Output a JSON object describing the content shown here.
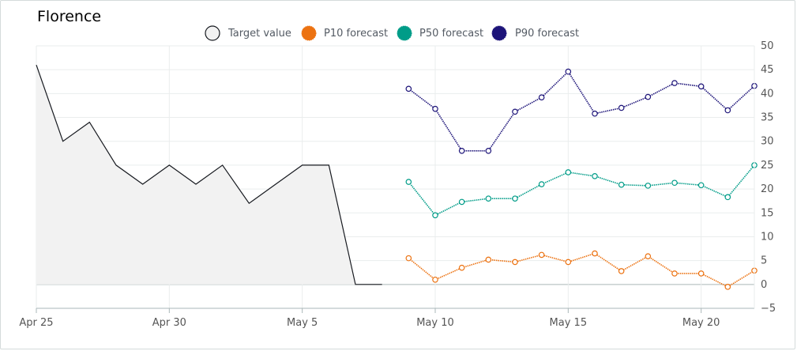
{
  "chart_data": {
    "type": "line",
    "title": "Florence",
    "x_tick_labels": [
      "Apr 25",
      "Apr 30",
      "May 5",
      "May 10",
      "May 15",
      "May 20"
    ],
    "y_tick_labels": [
      "50",
      "45",
      "40",
      "35",
      "30",
      "25",
      "20",
      "15",
      "10",
      "5",
      "0",
      "−5"
    ],
    "x_range": [
      "2024-04-25",
      "2024-05-22"
    ],
    "ylim": [
      -5,
      50
    ],
    "legend_position": "top-center",
    "grid": true,
    "series": [
      {
        "name": "Target value",
        "color": "#16191f",
        "fill": "#f2f2f2",
        "marker": "none",
        "points": [
          {
            "x": "2024-04-25",
            "y": 46
          },
          {
            "x": "2024-04-26",
            "y": 30
          },
          {
            "x": "2024-04-27",
            "y": 34
          },
          {
            "x": "2024-04-28",
            "y": 25
          },
          {
            "x": "2024-04-29",
            "y": 21
          },
          {
            "x": "2024-04-30",
            "y": 25
          },
          {
            "x": "2024-05-01",
            "y": 21
          },
          {
            "x": "2024-05-02",
            "y": 25
          },
          {
            "x": "2024-05-03",
            "y": 17
          },
          {
            "x": "2024-05-04",
            "y": 21
          },
          {
            "x": "2024-05-05",
            "y": 25
          },
          {
            "x": "2024-05-06",
            "y": 25
          },
          {
            "x": "2024-05-07",
            "y": 0
          },
          {
            "x": "2024-05-08",
            "y": 0
          }
        ]
      },
      {
        "name": "P10 forecast",
        "color": "#ec7211",
        "marker": "circle",
        "points": [
          {
            "x": "2024-05-09",
            "y": 5.5
          },
          {
            "x": "2024-05-10",
            "y": 1
          },
          {
            "x": "2024-05-11",
            "y": 3.5
          },
          {
            "x": "2024-05-12",
            "y": 5.2
          },
          {
            "x": "2024-05-13",
            "y": 4.7
          },
          {
            "x": "2024-05-14",
            "y": 6.2
          },
          {
            "x": "2024-05-15",
            "y": 4.7
          },
          {
            "x": "2024-05-16",
            "y": 6.5
          },
          {
            "x": "2024-05-17",
            "y": 2.8
          },
          {
            "x": "2024-05-18",
            "y": 5.9
          },
          {
            "x": "2024-05-19",
            "y": 2.3
          },
          {
            "x": "2024-05-20",
            "y": 2.3
          },
          {
            "x": "2024-05-21",
            "y": -0.5
          },
          {
            "x": "2024-05-22",
            "y": 2.9
          }
        ]
      },
      {
        "name": "P50 forecast",
        "color": "#009c88",
        "marker": "circle",
        "points": [
          {
            "x": "2024-05-09",
            "y": 21.5
          },
          {
            "x": "2024-05-10",
            "y": 14.5
          },
          {
            "x": "2024-05-11",
            "y": 17.3
          },
          {
            "x": "2024-05-12",
            "y": 18
          },
          {
            "x": "2024-05-13",
            "y": 18
          },
          {
            "x": "2024-05-14",
            "y": 21
          },
          {
            "x": "2024-05-15",
            "y": 23.5
          },
          {
            "x": "2024-05-16",
            "y": 22.7
          },
          {
            "x": "2024-05-17",
            "y": 20.9
          },
          {
            "x": "2024-05-18",
            "y": 20.7
          },
          {
            "x": "2024-05-19",
            "y": 21.3
          },
          {
            "x": "2024-05-20",
            "y": 20.8
          },
          {
            "x": "2024-05-21",
            "y": 18.3
          },
          {
            "x": "2024-05-22",
            "y": 25
          }
        ]
      },
      {
        "name": "P90 forecast",
        "color": "#1d1479",
        "marker": "circle",
        "points": [
          {
            "x": "2024-05-09",
            "y": 41
          },
          {
            "x": "2024-05-10",
            "y": 36.8
          },
          {
            "x": "2024-05-11",
            "y": 28
          },
          {
            "x": "2024-05-12",
            "y": 28
          },
          {
            "x": "2024-05-13",
            "y": 36.2
          },
          {
            "x": "2024-05-14",
            "y": 39.2
          },
          {
            "x": "2024-05-15",
            "y": 44.6
          },
          {
            "x": "2024-05-16",
            "y": 35.8
          },
          {
            "x": "2024-05-17",
            "y": 37
          },
          {
            "x": "2024-05-18",
            "y": 39.3
          },
          {
            "x": "2024-05-19",
            "y": 42.2
          },
          {
            "x": "2024-05-20",
            "y": 41.5
          },
          {
            "x": "2024-05-21",
            "y": 36.5
          },
          {
            "x": "2024-05-22",
            "y": 41.6
          }
        ]
      }
    ]
  }
}
